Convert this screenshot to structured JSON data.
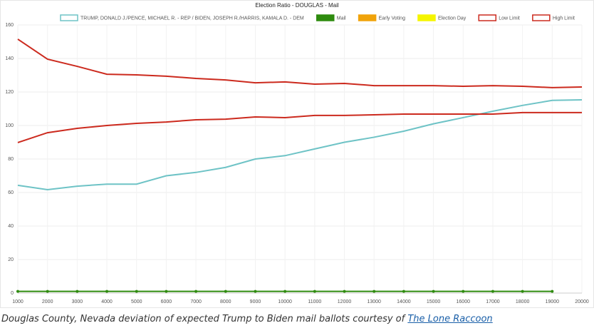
{
  "chart_data": {
    "type": "line",
    "title": "Election Ratio - DOUGLAS - Mail",
    "categories": [
      "1000",
      "2000",
      "3000",
      "4000",
      "5000",
      "6000",
      "7000",
      "8000",
      "9000",
      "10000",
      "11000",
      "12000",
      "13000",
      "14000",
      "15000",
      "16000",
      "17000",
      "18000",
      "19000",
      "20000"
    ],
    "ylim": [
      0,
      160
    ],
    "yticks": [
      0,
      20,
      40,
      60,
      80,
      100,
      120,
      140,
      160
    ],
    "grid": true,
    "legend": "top",
    "series": [
      {
        "name": "TRUMP, DONALD J./PENCE, MICHAEL R. - REP / BIDEN, JOSEPH R./HARRIS, KAMALA D. - DEM",
        "color": "#6ec3c6",
        "values": [
          64.3,
          61.7,
          63.8,
          65,
          65,
          70,
          72,
          75,
          80,
          82,
          86,
          90,
          93,
          96.6,
          101,
          104.7,
          108.5,
          112,
          115,
          115.3
        ]
      },
      {
        "name": "Mail",
        "color": "#2e8b0e",
        "values": [
          1,
          1,
          1,
          1,
          1,
          1,
          1,
          1,
          1,
          1,
          1,
          1,
          1,
          1,
          1,
          1,
          1,
          1,
          1,
          null
        ]
      },
      {
        "name": "Early Voting",
        "color": "#f0a30a",
        "values": [
          null,
          null,
          null,
          null,
          null,
          null,
          null,
          null,
          null,
          null,
          null,
          null,
          null,
          null,
          null,
          null,
          null,
          null,
          null,
          null
        ]
      },
      {
        "name": "Election Day",
        "color": "#f5f500",
        "values": [
          null,
          null,
          null,
          null,
          null,
          null,
          null,
          null,
          null,
          null,
          null,
          null,
          null,
          null,
          null,
          null,
          null,
          null,
          null,
          null
        ]
      },
      {
        "name": "Low Limit",
        "color": "#cc2a1e",
        "values": [
          89.8,
          95.7,
          98.3,
          100,
          101.3,
          102.1,
          103.4,
          103.8,
          105.1,
          104.7,
          106,
          106,
          106.4,
          106.8,
          106.8,
          106.8,
          106.8,
          107.7,
          107.7,
          107.7
        ]
      },
      {
        "name": "High Limit",
        "color": "#cc2a1e",
        "values": [
          151.5,
          139.6,
          135.3,
          130.6,
          130.2,
          129.4,
          128.1,
          127.2,
          125.5,
          126,
          124.7,
          125.1,
          123.8,
          123.8,
          123.8,
          123.4,
          123.8,
          123.4,
          122.6,
          123
        ]
      }
    ]
  },
  "caption": {
    "text": "Douglas County, Nevada deviation of expected Trump to Biden mail ballots courtesy of",
    "link": "The Lone Raccoon"
  }
}
